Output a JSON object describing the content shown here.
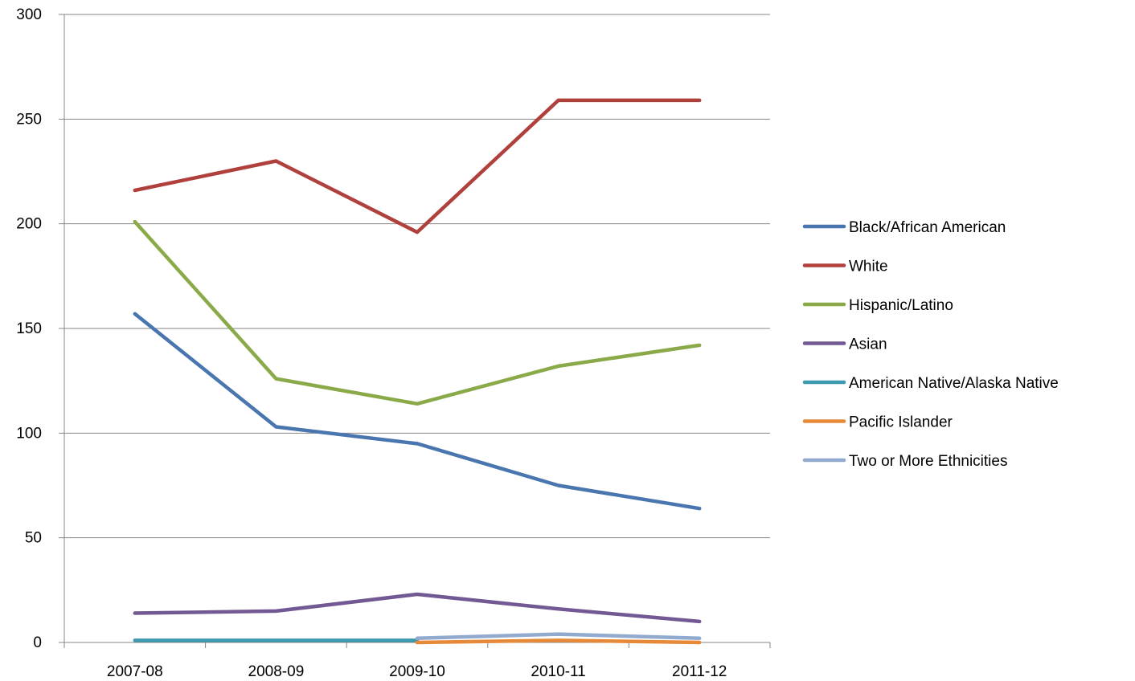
{
  "chart_data": {
    "type": "line",
    "categories": [
      "2007-08",
      "2008-09",
      "2009-10",
      "2010-11",
      "2011-12"
    ],
    "ylim": [
      0,
      300
    ],
    "y_ticks": [
      "0",
      "50",
      "100",
      "150",
      "200",
      "250",
      "300"
    ],
    "grid": "horizontal",
    "legend_position": "right",
    "series": [
      {
        "name": "Black/African American",
        "color": "#4A76B0",
        "values": [
          157,
          103,
          95,
          75,
          64
        ]
      },
      {
        "name": "White",
        "color": "#B0403C",
        "values": [
          216,
          230,
          196,
          259,
          259
        ]
      },
      {
        "name": "Hispanic/Latino",
        "color": "#8AAA4A",
        "values": [
          201,
          126,
          114,
          132,
          142
        ]
      },
      {
        "name": "Asian",
        "color": "#735993",
        "values": [
          14,
          15,
          23,
          16,
          10
        ]
      },
      {
        "name": "American Native/Alaska Native",
        "color": "#3B9AAD",
        "values": [
          1,
          1,
          1,
          null,
          null
        ]
      },
      {
        "name": "Pacific Islander",
        "color": "#E68A3A",
        "values": [
          null,
          null,
          0,
          1,
          0
        ]
      },
      {
        "name": "Two or More Ethnicities",
        "color": "#93AACF",
        "values": [
          null,
          null,
          2,
          4,
          2
        ]
      }
    ]
  }
}
